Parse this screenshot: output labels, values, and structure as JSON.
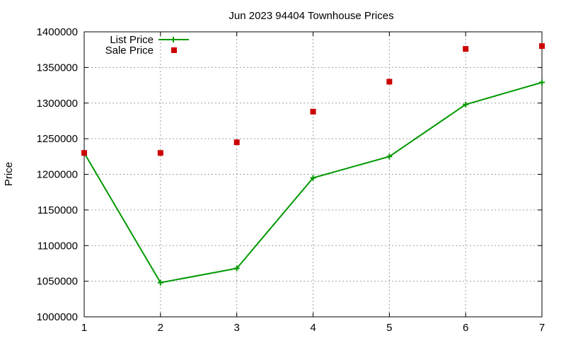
{
  "chart_data": {
    "type": "line",
    "title": "Jun 2023 94404 Townhouse Prices",
    "xlabel": "",
    "ylabel": "Price",
    "x": [
      1,
      2,
      3,
      4,
      5,
      6,
      7
    ],
    "xlim": [
      1,
      7
    ],
    "ylim": [
      1000000,
      1400000
    ],
    "xticks": [
      "1",
      "2",
      "3",
      "4",
      "5",
      "6",
      "7"
    ],
    "yticks": [
      "1000000",
      "1050000",
      "1100000",
      "1150000",
      "1200000",
      "1250000",
      "1300000",
      "1350000",
      "1400000"
    ],
    "grid": true,
    "legend_position": "top-left",
    "series": [
      {
        "name": "List Price",
        "style": "line+cross",
        "color": "#009900",
        "values": [
          1230000,
          1048000,
          1068000,
          1195000,
          1225000,
          1298000,
          1329000
        ]
      },
      {
        "name": "Sale Price",
        "style": "square-points",
        "color": "#cc0000",
        "values": [
          1230000,
          1230000,
          1245000,
          1288000,
          1330000,
          1376000,
          1380000
        ]
      }
    ]
  }
}
